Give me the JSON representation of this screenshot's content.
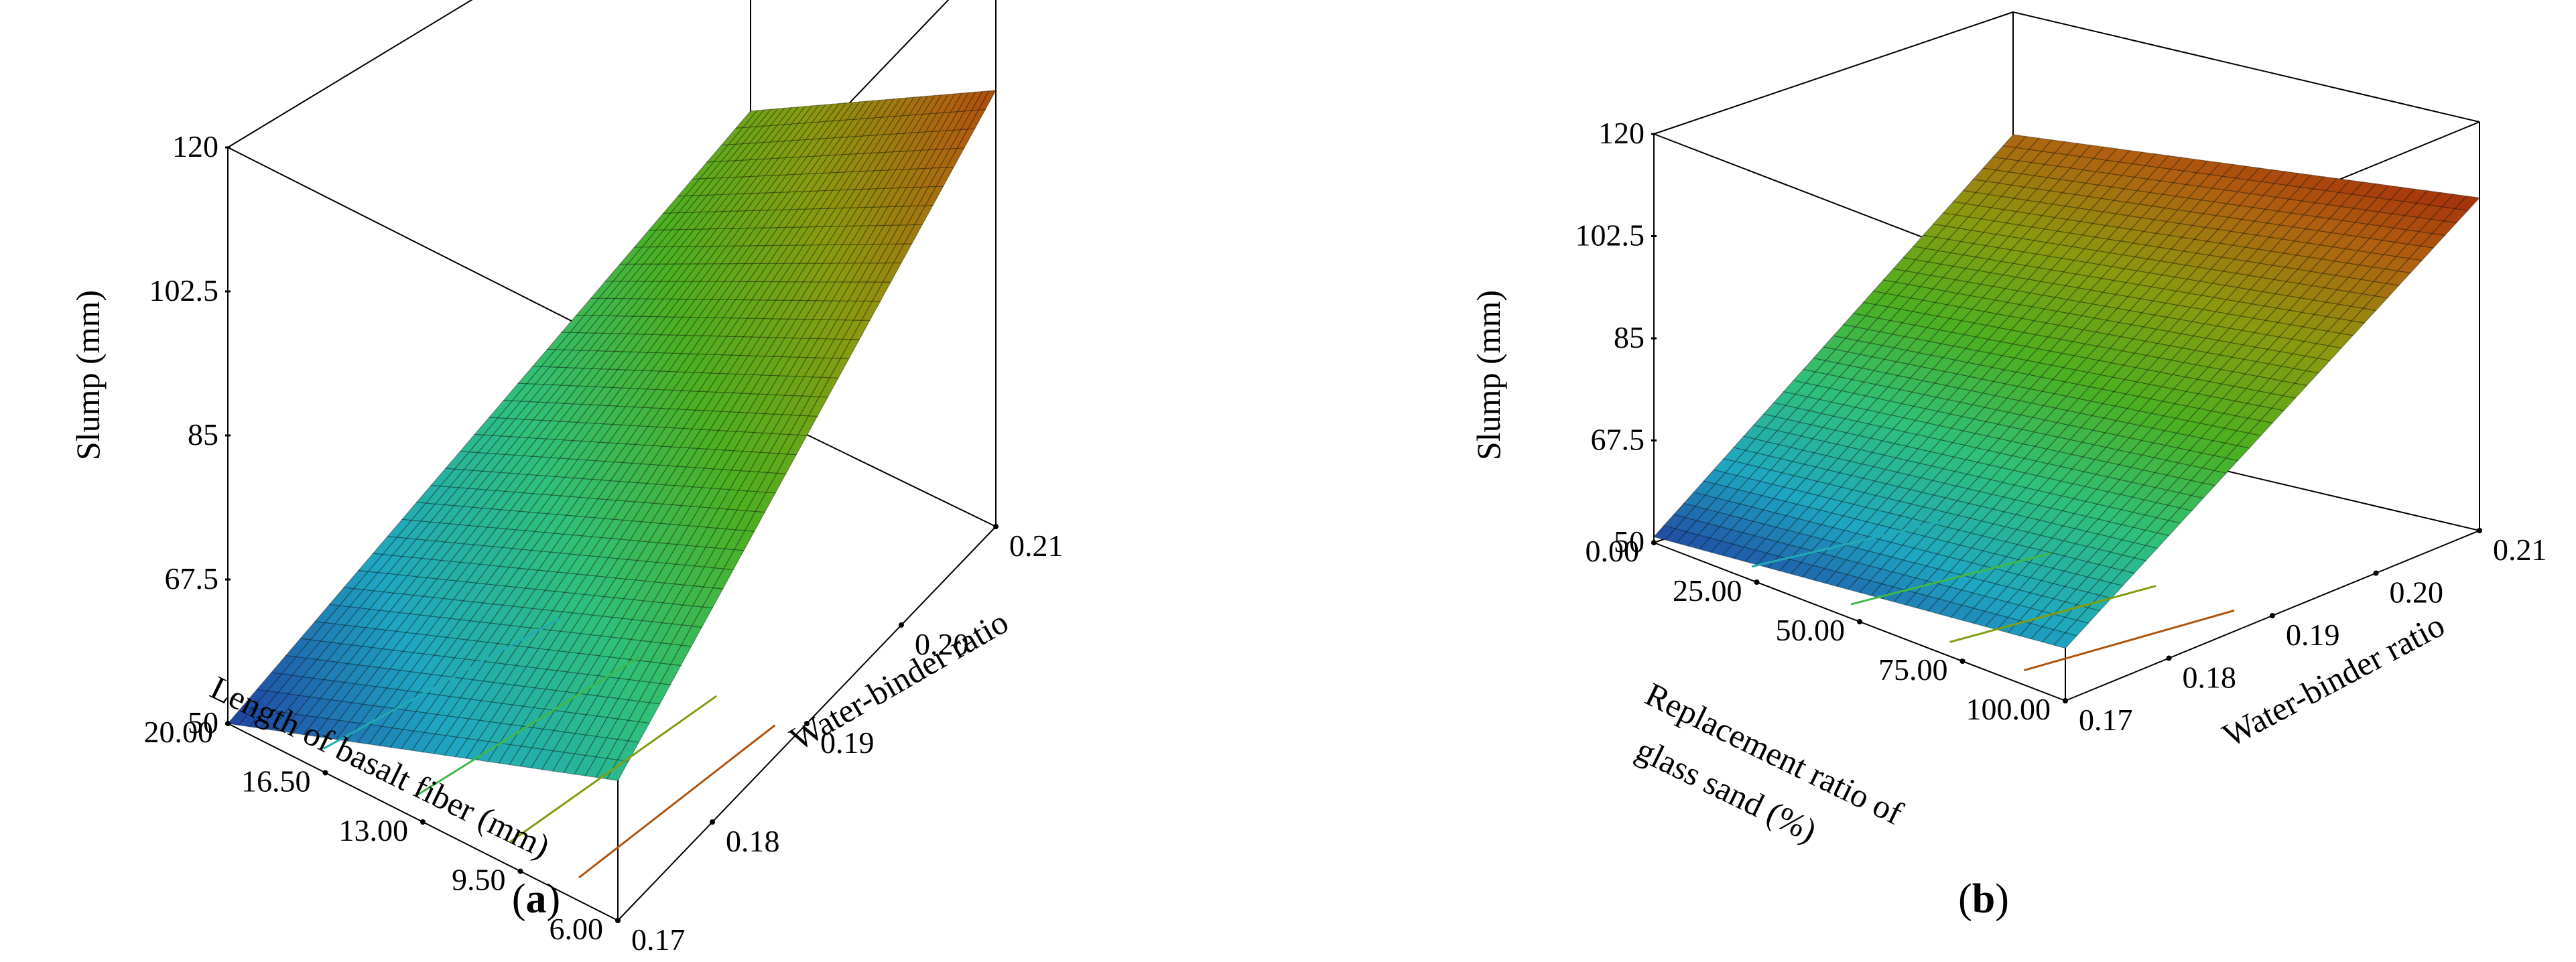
{
  "chart_data": [
    {
      "type": "surface3d",
      "panel_label": "(a)",
      "zlabel": "Slump (mm)",
      "xlabel": "Length of basalt fiber (mm)",
      "ylabel": "Water-binder ratio",
      "x_ticks": [
        "20.00",
        "16.50",
        "13.00",
        "9.50",
        "6.00"
      ],
      "y_ticks": [
        "0.17",
        "0.18",
        "0.19",
        "0.20",
        "0.21"
      ],
      "z_ticks": [
        "50",
        "67.5",
        "85",
        "102.5",
        "120"
      ],
      "xlim": [
        6,
        20
      ],
      "ylim": [
        0.17,
        0.21
      ],
      "zlim": [
        50,
        120
      ],
      "corners": [
        {
          "x": 20,
          "y": 0.17,
          "z": 50
        },
        {
          "x": 6,
          "y": 0.17,
          "z": 67
        },
        {
          "x": 20,
          "y": 0.21,
          "z": 86
        },
        {
          "x": 6,
          "y": 0.21,
          "z": 103
        }
      ],
      "colormap": [
        "#1f3fa0",
        "#1fa6c2",
        "#2fc07a",
        "#4cb020",
        "#8a9a10",
        "#b06010",
        "#a01a08"
      ]
    },
    {
      "type": "surface3d",
      "panel_label": "(b)",
      "zlabel": "Slump (mm)",
      "xlabel": "Replacement ratio of glass sand (%)",
      "ylabel": "Water-binder ratio",
      "x_ticks": [
        "0.00",
        "25.00",
        "50.00",
        "75.00",
        "100.00"
      ],
      "y_ticks": [
        "0.17",
        "0.18",
        "0.19",
        "0.20",
        "0.21"
      ],
      "z_ticks": [
        "50",
        "67.5",
        "85",
        "102.5",
        "120"
      ],
      "xlim": [
        0,
        100
      ],
      "ylim": [
        0.17,
        0.21
      ],
      "zlim": [
        50,
        120
      ],
      "corners": [
        {
          "x": 0,
          "y": 0.17,
          "z": 51
        },
        {
          "x": 100,
          "y": 0.17,
          "z": 59
        },
        {
          "x": 0,
          "y": 0.21,
          "z": 99
        },
        {
          "x": 100,
          "y": 0.21,
          "z": 107
        }
      ],
      "colormap": [
        "#1f3fa0",
        "#1fa6c2",
        "#2fc07a",
        "#4cb020",
        "#8a9a10",
        "#b06010",
        "#a01a08"
      ]
    }
  ]
}
